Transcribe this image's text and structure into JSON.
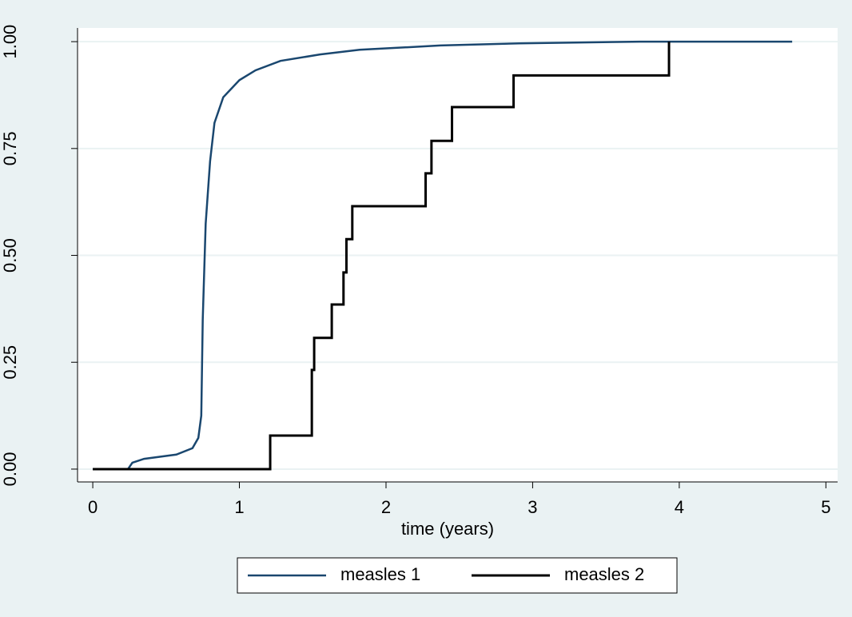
{
  "chart_data": {
    "type": "line",
    "x_label": "time (years)",
    "xlim": [
      -0.104,
      5.08
    ],
    "xticks": [
      0,
      1,
      2,
      3,
      4,
      5
    ],
    "ylim": [
      -0.03,
      1.032
    ],
    "yticks": [
      {
        "value": 0,
        "label": "0.00"
      },
      {
        "value": 0.25,
        "label": "0.25"
      },
      {
        "value": 0.5,
        "label": "0.50"
      },
      {
        "value": 0.75,
        "label": "0.75"
      },
      {
        "value": 1,
        "label": "1.00"
      }
    ],
    "grid": true,
    "legend": "bottom",
    "series": [
      {
        "name": "measles 1",
        "color": "#1a476f",
        "step": false,
        "x": [
          0,
          0.24,
          0.27,
          0.35,
          0.57,
          0.68,
          0.72,
          0.74,
          0.75,
          0.77,
          0.8,
          0.83,
          0.89,
          1.0,
          1.11,
          1.28,
          1.55,
          1.82,
          2.37,
          2.91,
          3.73,
          4.77
        ],
        "values": [
          0,
          0,
          0.015,
          0.024,
          0.034,
          0.049,
          0.073,
          0.125,
          0.35,
          0.574,
          0.72,
          0.81,
          0.87,
          0.91,
          0.933,
          0.955,
          0.97,
          0.981,
          0.991,
          0.996,
          1.0,
          1.0
        ]
      },
      {
        "name": "measles 2",
        "color": "#000000",
        "step": true,
        "x": [
          0,
          1.21,
          1.494,
          1.51,
          1.63,
          1.71,
          1.73,
          1.77,
          2.27,
          2.31,
          2.45,
          2.87,
          3.93
        ],
        "values": [
          0,
          0.0785,
          0.232,
          0.307,
          0.385,
          0.46,
          0.538,
          0.615,
          0.692,
          0.768,
          0.847,
          0.921,
          1.0
        ]
      }
    ]
  }
}
